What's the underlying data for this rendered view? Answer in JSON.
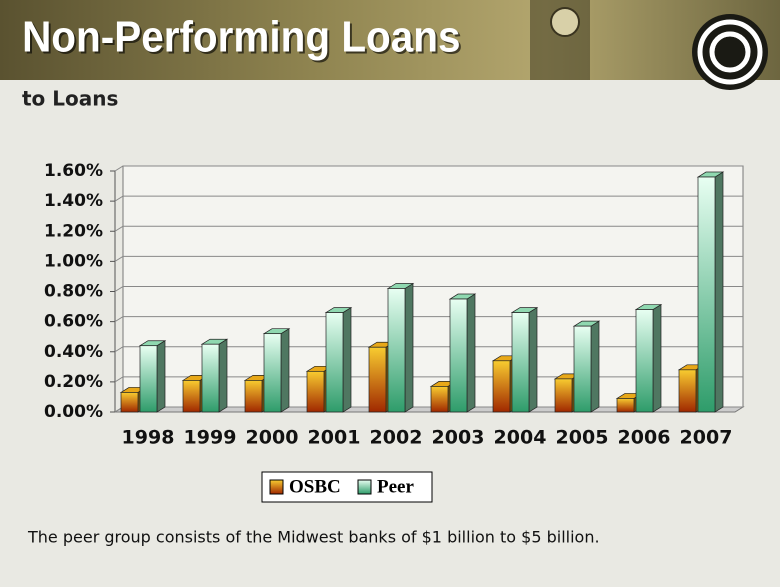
{
  "chart_data": {
    "type": "bar3d",
    "title": "Non-Performing Loans",
    "subtitle": "to Loans",
    "footnote": "The peer group consists of the Midwest banks of $1 billion to $5 billion.",
    "categories": [
      "1998",
      "1999",
      "2000",
      "2001",
      "2002",
      "2003",
      "2004",
      "2005",
      "2006",
      "2007"
    ],
    "series": [
      {
        "name": "OSBC",
        "color": "#e8a818",
        "values": [
          0.13,
          0.21,
          0.21,
          0.27,
          0.43,
          0.17,
          0.34,
          0.22,
          0.09,
          0.28
        ]
      },
      {
        "name": "Peer",
        "color": "#8fd8b0",
        "values": [
          0.44,
          0.45,
          0.52,
          0.66,
          0.82,
          0.75,
          0.66,
          0.57,
          0.68,
          1.56
        ]
      }
    ],
    "ylim": [
      0,
      1.6
    ],
    "yticks": [
      {
        "value": 0,
        "label": "0.00%"
      },
      {
        "value": 0.2,
        "label": "0.20%"
      },
      {
        "value": 0.4,
        "label": "0.40%"
      },
      {
        "value": 0.6,
        "label": "0.60%"
      },
      {
        "value": 0.8,
        "label": "0.80%"
      },
      {
        "value": 1.0,
        "label": "1.00%"
      },
      {
        "value": 1.2,
        "label": "1.20%"
      },
      {
        "value": 1.4,
        "label": "1.40%"
      },
      {
        "value": 1.6,
        "label": "1.60%"
      }
    ],
    "grid": true,
    "legend": "bottom"
  }
}
